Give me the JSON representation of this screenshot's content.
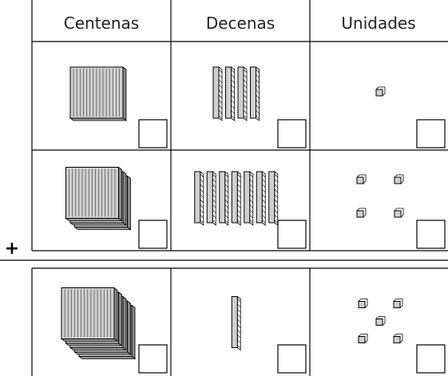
{
  "headers": [
    "Centenas",
    "Decenas",
    "Unidades"
  ],
  "operator": "+",
  "rows": [
    {
      "hundreds": 1,
      "tens": 4,
      "units": 1
    },
    {
      "hundreds": 3,
      "tens": 7,
      "units": 4
    },
    {
      "hundreds": 5,
      "tens": 1,
      "units": 5
    }
  ]
}
